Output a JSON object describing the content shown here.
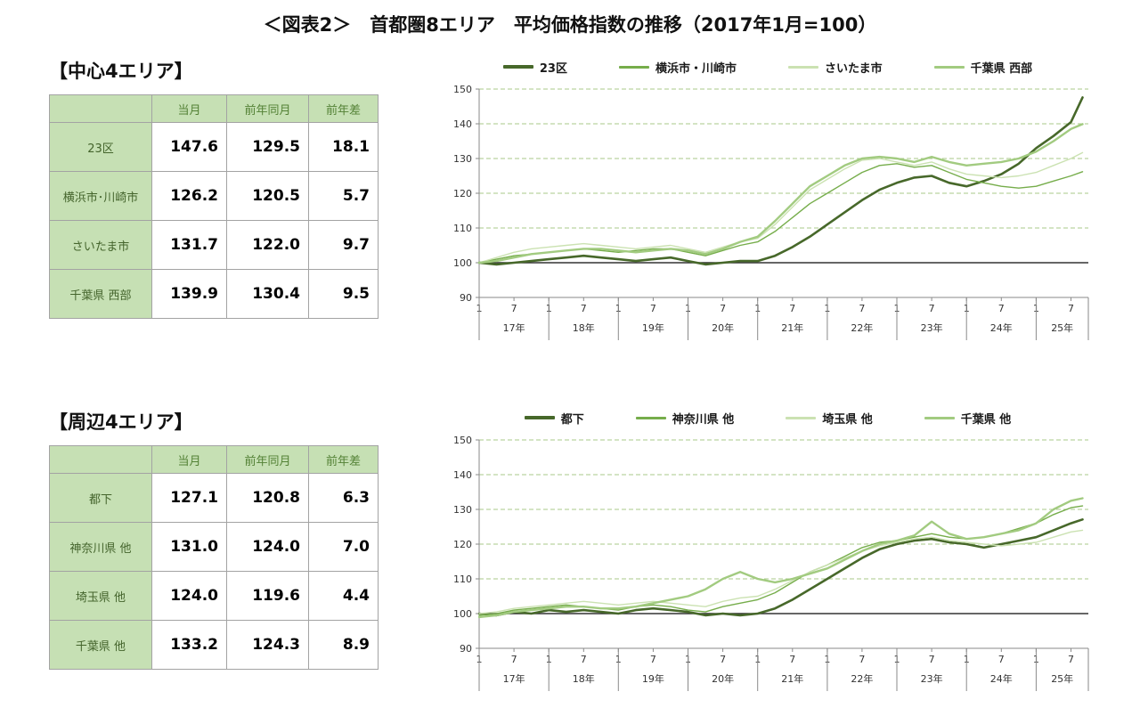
{
  "page": {
    "title": "＜図表2＞　首都圏8エリア　平均価格指数の推移（2017年1月=100）"
  },
  "sections": [
    {
      "heading": "【中心4エリア】",
      "table": {
        "corner": "",
        "col_headers": [
          "当月",
          "前年同月",
          "前年差"
        ],
        "rows": [
          {
            "label": "23区",
            "values": [
              "147.6",
              "129.5",
              "18.1"
            ]
          },
          {
            "label": "横浜市･川崎市",
            "values": [
              "126.2",
              "120.5",
              "5.7"
            ]
          },
          {
            "label": "さいたま市",
            "values": [
              "131.7",
              "122.0",
              "9.7"
            ]
          },
          {
            "label": "千葉県 西部",
            "values": [
              "139.9",
              "130.4",
              "9.5"
            ]
          }
        ]
      }
    },
    {
      "heading": "【周辺4エリア】",
      "table": {
        "corner": "",
        "col_headers": [
          "当月",
          "前年同月",
          "前年差"
        ],
        "rows": [
          {
            "label": "都下",
            "values": [
              "127.1",
              "120.8",
              "6.3"
            ]
          },
          {
            "label": "神奈川県 他",
            "values": [
              "131.0",
              "124.0",
              "7.0"
            ]
          },
          {
            "label": "埼玉県 他",
            "values": [
              "124.0",
              "119.6",
              "4.4"
            ]
          },
          {
            "label": "千葉県 他",
            "values": [
              "133.2",
              "124.3",
              "8.9"
            ]
          }
        ]
      }
    }
  ],
  "chart_data": [
    {
      "type": "line",
      "title": "中心4エリア 平均価格指数の推移",
      "ylim": [
        90,
        150
      ],
      "yticks": [
        90,
        100,
        110,
        120,
        130,
        140,
        150
      ],
      "baseline": 100,
      "grid": "horizontal-dashed",
      "legend_position": "top",
      "x_unit": "months since 2017-01",
      "x_max": 105,
      "year_labels": [
        "17年",
        "18年",
        "19年",
        "20年",
        "21年",
        "22年",
        "23年",
        "24年",
        "25年"
      ],
      "month_tick_labels": [
        "1",
        "7"
      ],
      "x": [
        0,
        3,
        6,
        9,
        12,
        15,
        18,
        21,
        24,
        27,
        30,
        33,
        36,
        39,
        42,
        45,
        48,
        51,
        54,
        57,
        60,
        63,
        66,
        69,
        72,
        75,
        78,
        81,
        84,
        87,
        90,
        93,
        96,
        99,
        102,
        104
      ],
      "series": [
        {
          "name": "23区",
          "color": "#47682a",
          "width": 2.6,
          "values": [
            100,
            99.5,
            100,
            100.5,
            101,
            101.5,
            102,
            101.5,
            101,
            100.5,
            101,
            101.5,
            100.5,
            99.5,
            100,
            100.5,
            100.5,
            102,
            104.5,
            107.5,
            111,
            114.5,
            118,
            121,
            123,
            124.5,
            125,
            123,
            122,
            123.5,
            125.5,
            128.5,
            133,
            136.5,
            140.5,
            147.6
          ]
        },
        {
          "name": "横浜市・川崎市",
          "color": "#76ad4b",
          "width": 1.4,
          "values": [
            100,
            101,
            102,
            102.5,
            103,
            103.5,
            104,
            103.5,
            103,
            103.5,
            104,
            104,
            103,
            102,
            103.5,
            105,
            106,
            109,
            113,
            117,
            120,
            123,
            126,
            128,
            128.5,
            127.5,
            128,
            126,
            124,
            123,
            122,
            121.5,
            122,
            123.5,
            125,
            126.2
          ]
        },
        {
          "name": "さいたま市",
          "color": "#cbe2b2",
          "width": 1.4,
          "values": [
            100,
            101.5,
            103,
            104,
            104.5,
            105,
            105.5,
            105,
            104.5,
            104,
            104.5,
            105,
            104,
            103,
            104.5,
            106,
            107,
            111,
            116,
            121,
            124,
            127,
            129.5,
            130,
            129,
            128,
            129,
            127,
            125.5,
            125,
            124.5,
            125,
            126,
            128,
            130,
            131.7
          ]
        },
        {
          "name": "千葉県 西部",
          "color": "#a2cb80",
          "width": 2.4,
          "values": [
            100,
            100.5,
            101.5,
            102.5,
            103,
            103.5,
            104,
            104,
            103.5,
            103,
            103.5,
            104,
            103.5,
            102.5,
            104,
            106,
            107.5,
            112,
            117,
            122,
            125,
            128,
            130,
            130.5,
            130,
            129,
            130.5,
            129,
            128,
            128.5,
            129,
            130,
            132,
            135,
            138.5,
            139.9
          ]
        }
      ]
    },
    {
      "type": "line",
      "title": "周辺4エリア 平均価格指数の推移",
      "ylim": [
        90,
        150
      ],
      "yticks": [
        90,
        100,
        110,
        120,
        130,
        140,
        150
      ],
      "baseline": 100,
      "grid": "horizontal-dashed",
      "legend_position": "top",
      "x_unit": "months since 2017-01",
      "x_max": 105,
      "year_labels": [
        "17年",
        "18年",
        "19年",
        "20年",
        "21年",
        "22年",
        "23年",
        "24年",
        "25年"
      ],
      "month_tick_labels": [
        "1",
        "7"
      ],
      "x": [
        0,
        3,
        6,
        9,
        12,
        15,
        18,
        21,
        24,
        27,
        30,
        33,
        36,
        39,
        42,
        45,
        48,
        51,
        54,
        57,
        60,
        63,
        66,
        69,
        72,
        75,
        78,
        81,
        84,
        87,
        90,
        93,
        96,
        99,
        102,
        104
      ],
      "series": [
        {
          "name": "都下",
          "color": "#47682a",
          "width": 2.6,
          "values": [
            100,
            99.5,
            100.5,
            100,
            101,
            100.5,
            101,
            100.5,
            100,
            101,
            101.5,
            101,
            100.5,
            99.5,
            100,
            99.5,
            100,
            101.5,
            104,
            107,
            110,
            113,
            116,
            118.5,
            120,
            121,
            121.5,
            120.5,
            120,
            119,
            120,
            121,
            122,
            124,
            126,
            127.1
          ]
        },
        {
          "name": "神奈川県 他",
          "color": "#76ad4b",
          "width": 1.4,
          "values": [
            99.5,
            100,
            101,
            101.5,
            102,
            102.5,
            102,
            101.5,
            101,
            102,
            102.5,
            102,
            101,
            100.5,
            102,
            103,
            104,
            106,
            109,
            112,
            114,
            116.5,
            119,
            120.5,
            121,
            122,
            123,
            122,
            121.5,
            122,
            123,
            124.5,
            126,
            128.5,
            130.5,
            131.0
          ]
        },
        {
          "name": "埼玉県 他",
          "color": "#cbe2b2",
          "width": 1.4,
          "values": [
            100,
            100.5,
            101.5,
            102,
            102.5,
            103,
            103.5,
            103,
            102.5,
            103,
            103.5,
            103,
            102.5,
            102,
            103.5,
            104.5,
            105,
            107,
            109.5,
            112,
            114,
            116,
            118,
            119.5,
            120.5,
            121.5,
            122,
            121,
            120.5,
            120,
            119.5,
            120,
            120.5,
            122,
            123.5,
            124.0
          ]
        },
        {
          "name": "千葉県 他",
          "color": "#a2cb80",
          "width": 2.4,
          "values": [
            99,
            99.5,
            100.5,
            101,
            101.5,
            102,
            102,
            101.5,
            101.5,
            102,
            103,
            104,
            105,
            107,
            110,
            112,
            110,
            109,
            110,
            111.5,
            113,
            115.5,
            118,
            120,
            121,
            122.5,
            126.5,
            123,
            121.5,
            122,
            123,
            124,
            126,
            130,
            132.5,
            133.2
          ]
        }
      ]
    }
  ]
}
